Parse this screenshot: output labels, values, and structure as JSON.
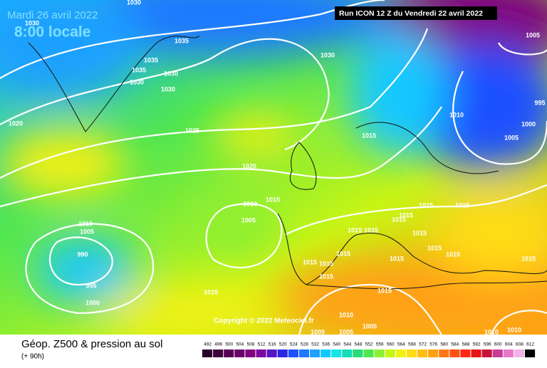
{
  "header": {
    "date": "Mardi 26 avril 2022",
    "time": "8:00 locale",
    "run": "Run ICON 12 Z du Vendredi 22 avril 2022"
  },
  "map": {
    "copyright": "Copyright © 2022 Meteociel.fr",
    "isobar_labels": [
      "1030",
      "1030",
      "1035",
      "1035",
      "1035",
      "1030",
      "1030",
      "1030",
      "1030",
      "1020",
      "1025",
      "1015",
      "1010",
      "1005",
      "1000",
      "995",
      "1005",
      "1020",
      "1015",
      "1010",
      "1005",
      "1015",
      "1015",
      "1015",
      "1015",
      "1010",
      "1005",
      "1015",
      "1015",
      "1015",
      "1015",
      "1015",
      "990",
      "1015",
      "1015",
      "1015",
      "1015",
      "1015",
      "1015",
      "995",
      "1015",
      "1015",
      "1000",
      "1010",
      "1005",
      "1005",
      "1005",
      "1010",
      "1010"
    ]
  },
  "legend": {
    "title": "Géop. Z500 & pression au sol",
    "subtitle": "(+ 90h)",
    "ticks": [
      492,
      496,
      500,
      504,
      508,
      512,
      516,
      520,
      524,
      528,
      532,
      536,
      540,
      544,
      548,
      552,
      556,
      560,
      564,
      568,
      572,
      576,
      580,
      584,
      588,
      592,
      596,
      600,
      604,
      608,
      612
    ],
    "colors": [
      "#2b002b",
      "#400040",
      "#550055",
      "#6a006a",
      "#800080",
      "#7a0aa0",
      "#5a14c8",
      "#2828e6",
      "#1e50ff",
      "#1e78ff",
      "#1ea0ff",
      "#14c8ff",
      "#14e6e6",
      "#14dcb4",
      "#28dc78",
      "#50e650",
      "#8cf032",
      "#c8f514",
      "#f0f014",
      "#ffdc14",
      "#ffbe14",
      "#ffa014",
      "#ff7814",
      "#ff5014",
      "#ff2814",
      "#e61414",
      "#c8143c",
      "#c83c96",
      "#e678c8",
      "#f0b4e6",
      "#000000"
    ]
  }
}
